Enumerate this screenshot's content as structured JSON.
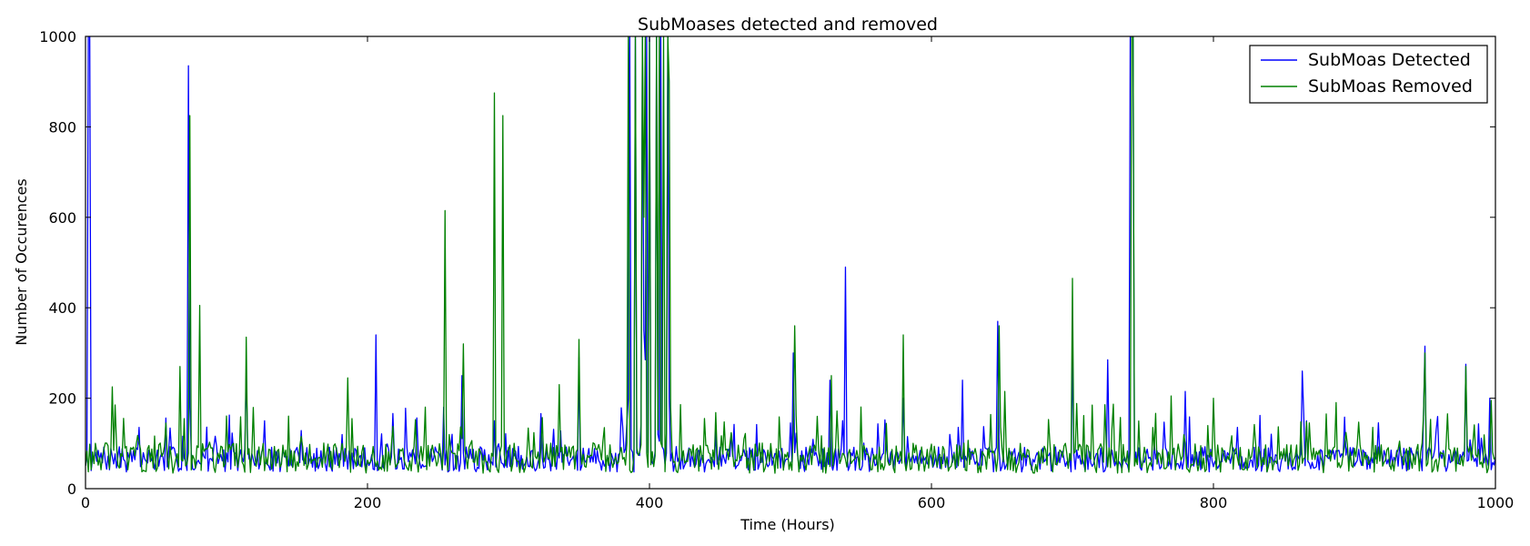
{
  "chart_data": {
    "type": "line",
    "title": "SubMoases detected and removed",
    "xlabel": "Time (Hours)",
    "ylabel": "Number of Occurences",
    "xlim": [
      0,
      1000
    ],
    "ylim": [
      0,
      1000
    ],
    "xticks": [
      0,
      200,
      400,
      600,
      800,
      1000
    ],
    "yticks": [
      0,
      200,
      400,
      600,
      800,
      1000
    ],
    "grid": false,
    "legend_position": "top-right",
    "series": [
      {
        "name": "SubMoas Detected",
        "color": "#0000ff",
        "base": 65,
        "noise": 28,
        "seed": 7,
        "spikes": [
          [
            2,
            1000
          ],
          [
            3,
            1000
          ],
          [
            4,
            40
          ],
          [
            73,
            935
          ],
          [
            74,
            180
          ],
          [
            114,
            260
          ],
          [
            127,
            150
          ],
          [
            206,
            340
          ],
          [
            254,
            180
          ],
          [
            267,
            250
          ],
          [
            290,
            150
          ],
          [
            350,
            290
          ],
          [
            385,
            200
          ],
          [
            386,
            1000
          ],
          [
            390,
            1000
          ],
          [
            395,
            1000
          ],
          [
            396,
            350
          ],
          [
            397,
            285
          ],
          [
            398,
            1000
          ],
          [
            400,
            1000
          ],
          [
            405,
            1000
          ],
          [
            406,
            120
          ],
          [
            407,
            105
          ],
          [
            408,
            1000
          ],
          [
            413,
            1000
          ],
          [
            414,
            200
          ],
          [
            502,
            300
          ],
          [
            528,
            240
          ],
          [
            539,
            490
          ],
          [
            580,
            200
          ],
          [
            622,
            240
          ],
          [
            647,
            370
          ],
          [
            700,
            300
          ],
          [
            725,
            285
          ],
          [
            741,
            1000
          ],
          [
            742,
            1000
          ],
          [
            743,
            1000
          ],
          [
            780,
            215
          ],
          [
            863,
            260
          ],
          [
            950,
            315
          ],
          [
            979,
            275
          ],
          [
            996,
            200
          ]
        ]
      },
      {
        "name": "SubMoas Removed",
        "color": "#008000",
        "base": 68,
        "noise": 34,
        "seed": 13,
        "spikes": [
          [
            19,
            225
          ],
          [
            21,
            185
          ],
          [
            67,
            270
          ],
          [
            74,
            825
          ],
          [
            81,
            405
          ],
          [
            114,
            335
          ],
          [
            186,
            245
          ],
          [
            255,
            615
          ],
          [
            268,
            320
          ],
          [
            290,
            875
          ],
          [
            296,
            825
          ],
          [
            336,
            230
          ],
          [
            350,
            330
          ],
          [
            385,
            1000
          ],
          [
            390,
            1000
          ],
          [
            395,
            1000
          ],
          [
            396,
            600
          ],
          [
            397,
            1000
          ],
          [
            400,
            1000
          ],
          [
            405,
            1000
          ],
          [
            406,
            130
          ],
          [
            407,
            1000
          ],
          [
            410,
            1000
          ],
          [
            413,
            1000
          ],
          [
            414,
            900
          ],
          [
            415,
            180
          ],
          [
            503,
            360
          ],
          [
            529,
            250
          ],
          [
            580,
            340
          ],
          [
            648,
            360
          ],
          [
            652,
            215
          ],
          [
            700,
            465
          ],
          [
            742,
            1000
          ],
          [
            743,
            1000
          ],
          [
            744,
            50
          ],
          [
            770,
            205
          ],
          [
            800,
            200
          ],
          [
            950,
            300
          ],
          [
            979,
            270
          ],
          [
            997,
            195
          ]
        ]
      }
    ]
  }
}
